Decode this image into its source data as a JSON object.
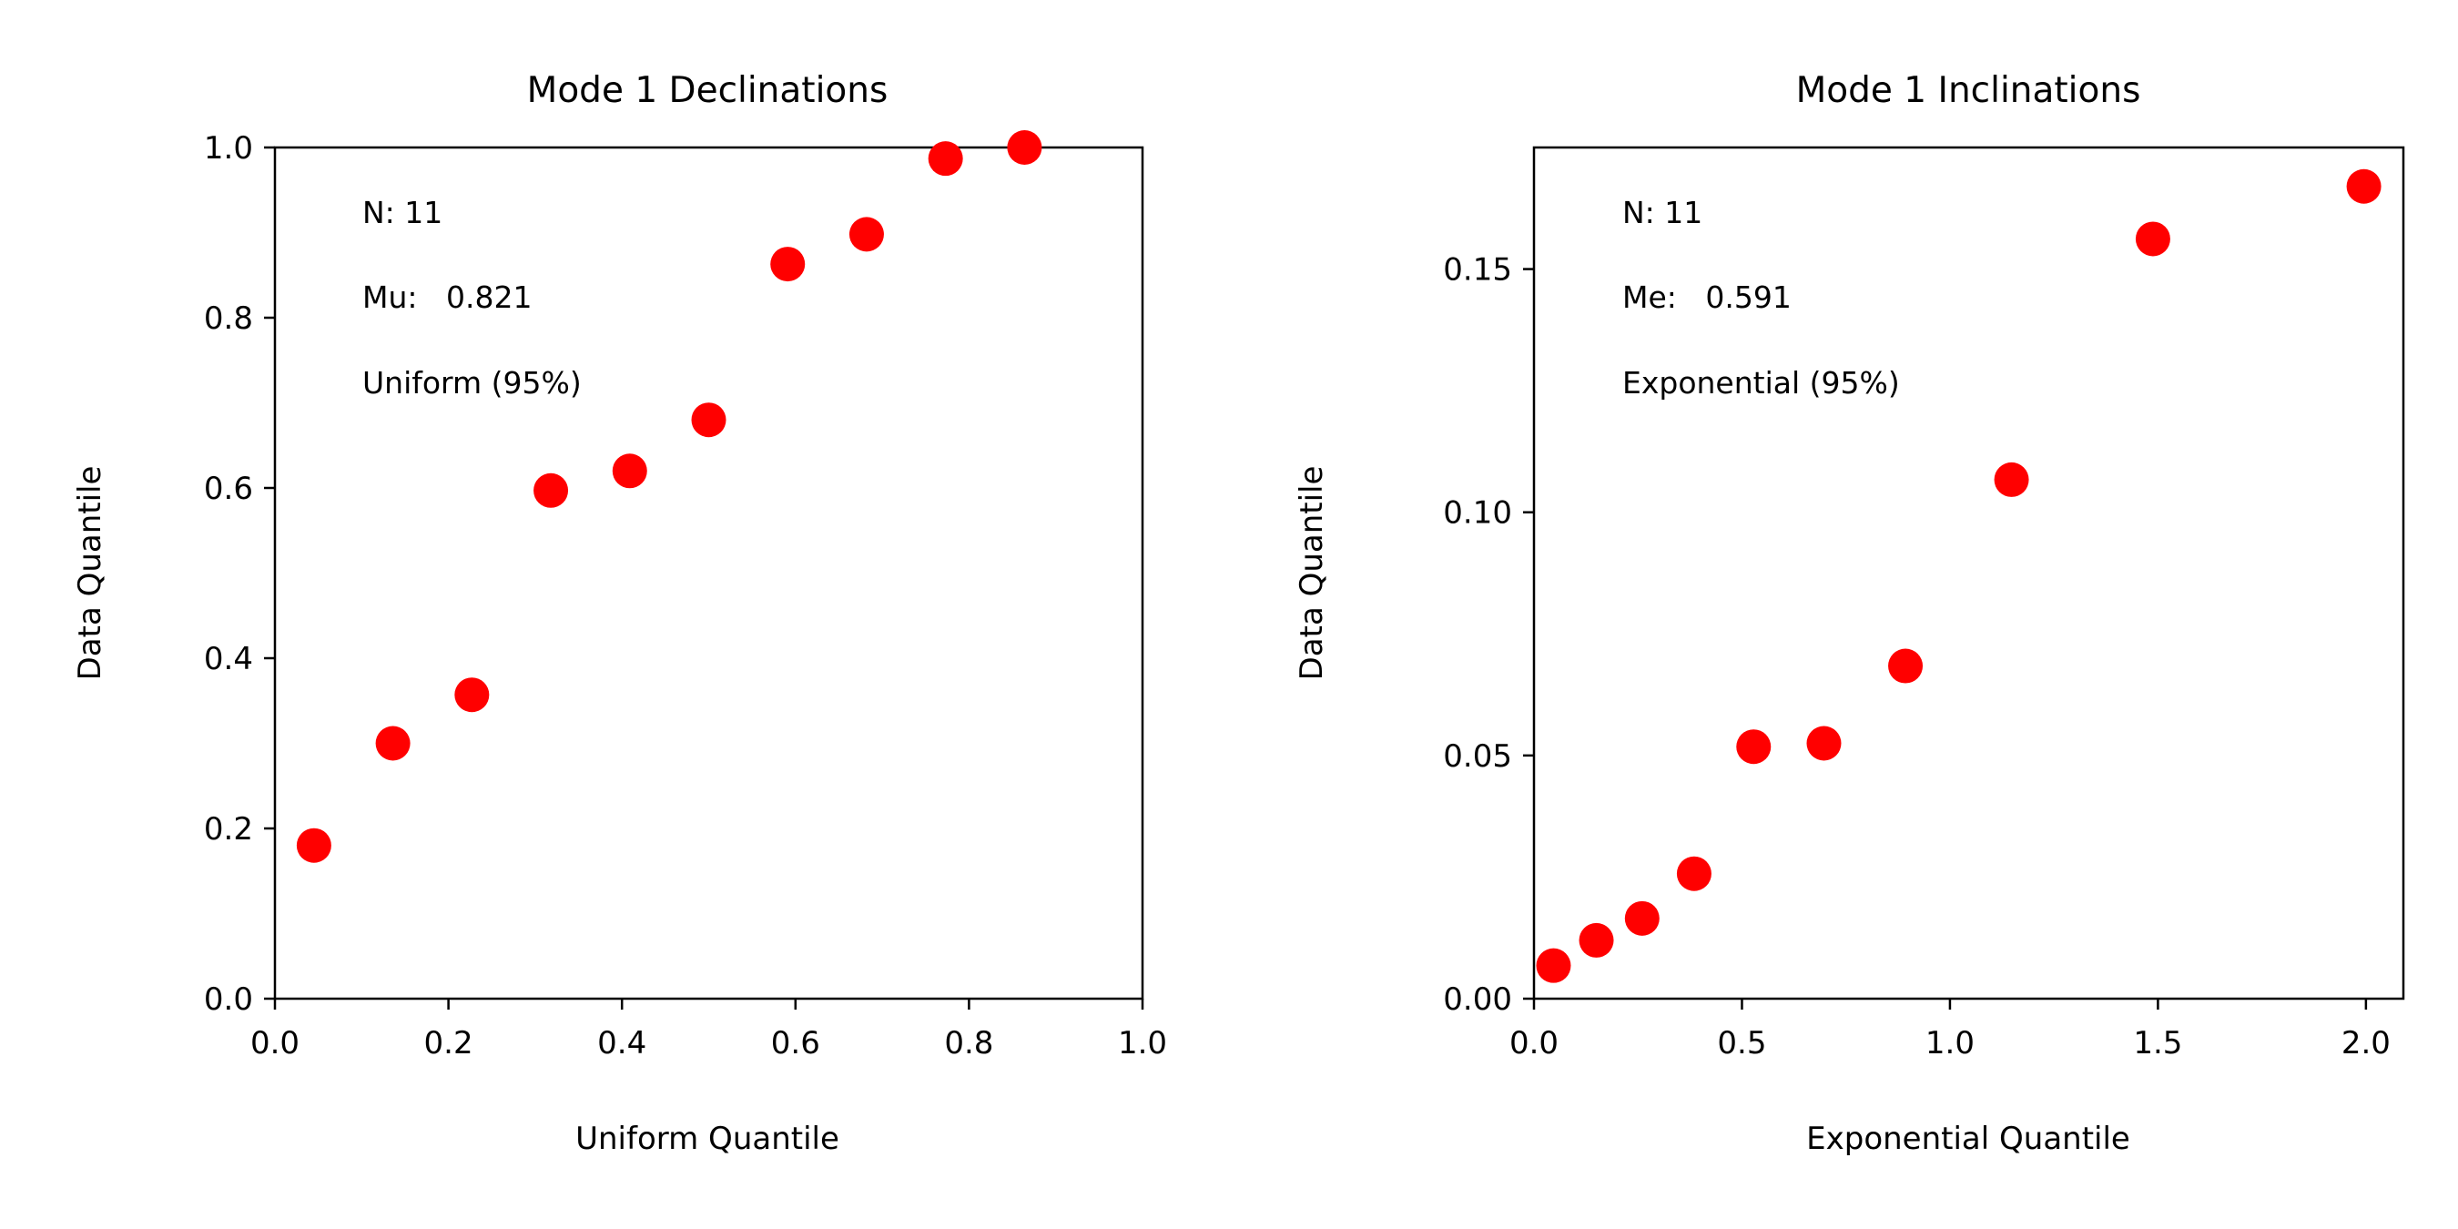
{
  "chart_data": [
    {
      "type": "scatter",
      "title": "Mode 1 Declinations",
      "xlabel": "Uniform Quantile",
      "ylabel": "Data Quantile",
      "xlim": [
        0.0,
        1.0
      ],
      "ylim": [
        0.0,
        1.0
      ],
      "xticks": [
        "0.0",
        "0.2",
        "0.4",
        "0.6",
        "0.8",
        "1.0"
      ],
      "yticks": [
        "0.0",
        "0.2",
        "0.4",
        "0.6",
        "0.8",
        "1.0"
      ],
      "grid": false,
      "marker_color": "#ff0000",
      "annotations": [
        "N: 11",
        "Mu:   0.821",
        "Uniform (95%)"
      ],
      "points": [
        {
          "x": 0.045,
          "y": 0.18
        },
        {
          "x": 0.136,
          "y": 0.3
        },
        {
          "x": 0.227,
          "y": 0.357
        },
        {
          "x": 0.318,
          "y": 0.597
        },
        {
          "x": 0.409,
          "y": 0.62
        },
        {
          "x": 0.5,
          "y": 0.68
        },
        {
          "x": 0.591,
          "y": 0.863
        },
        {
          "x": 0.682,
          "y": 0.898
        },
        {
          "x": 0.773,
          "y": 0.987
        },
        {
          "x": 0.864,
          "y": 1.0
        }
      ]
    },
    {
      "type": "scatter",
      "title": "Mode 1 Inclinations",
      "xlabel": "Exponential Quantile",
      "ylabel": "Data Quantile",
      "xlim": [
        0.0,
        2.09
      ],
      "ylim": [
        0.0,
        0.175
      ],
      "xticks": [
        "0.0",
        "0.5",
        "1.0",
        "1.5",
        "2.0"
      ],
      "yticks": [
        "0.00",
        "0.05",
        "0.10",
        "0.15"
      ],
      "grid": false,
      "marker_color": "#ff0000",
      "annotations": [
        "N: 11",
        "Me:   0.591",
        "Exponential (95%)"
      ],
      "points": [
        {
          "x": 0.047,
          "y": 0.0068
        },
        {
          "x": 0.15,
          "y": 0.012
        },
        {
          "x": 0.26,
          "y": 0.0165
        },
        {
          "x": 0.385,
          "y": 0.0257
        },
        {
          "x": 0.528,
          "y": 0.0518
        },
        {
          "x": 0.697,
          "y": 0.0525
        },
        {
          "x": 0.893,
          "y": 0.0684
        },
        {
          "x": 1.148,
          "y": 0.1067
        },
        {
          "x": 1.488,
          "y": 0.1562
        },
        {
          "x": 1.995,
          "y": 0.167
        }
      ]
    }
  ]
}
